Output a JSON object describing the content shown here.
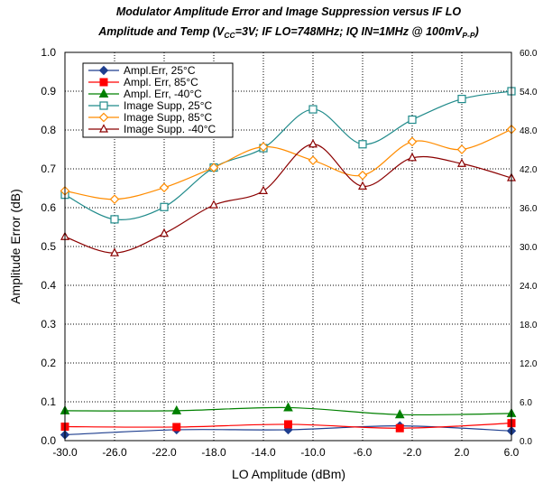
{
  "chart_data": {
    "type": "line",
    "title": {
      "line1": "Modulator Amplitude Error and Image Suppression versus IF LO",
      "line2_parts": [
        {
          "t": "Amplitude and Temp (V",
          "sub": false
        },
        {
          "t": "CC",
          "sub": true
        },
        {
          "t": "=3V; IF LO=748MHz; IQ IN=1MHz @ 100mV",
          "sub": false
        },
        {
          "t": "P-P",
          "sub": true
        },
        {
          "t": ")",
          "sub": false
        }
      ]
    },
    "xlabel": "LO Amplitude (dBm)",
    "ylabel": "Amplitude Error (dB)",
    "x_ticks": [
      "-30.0",
      "-26.0",
      "-22.0",
      "-18.0",
      "-14.0",
      "-10.0",
      "-6.0",
      "-2.0",
      "2.0",
      "6.0"
    ],
    "y_ticks": [
      "0.0",
      "0.1",
      "0.2",
      "0.3",
      "0.4",
      "0.5",
      "0.6",
      "0.7",
      "0.8",
      "0.9",
      "1.0"
    ],
    "y2_ticks": [
      "0.0",
      "6.0",
      "12.0",
      "18.0",
      "24.0",
      "30.0",
      "36.0",
      "42.0",
      "48.0",
      "54.0",
      "60.0"
    ],
    "xlim": [
      -30,
      6
    ],
    "ylim": [
      0,
      1.0
    ],
    "y2lim": [
      0,
      60
    ],
    "grid": true,
    "legend_position": "top-left",
    "series": [
      {
        "name": "Ampl.Err, 25°C",
        "axis": "left",
        "color": "#1f3f8f",
        "marker": "diamond",
        "x": [
          -30,
          -21,
          -12,
          -3,
          6
        ],
        "values": [
          0.015,
          0.028,
          0.028,
          0.038,
          0.025
        ]
      },
      {
        "name": "Ampl. Err, 85°C",
        "axis": "left",
        "color": "#ff0000",
        "marker": "square-filled",
        "x": [
          -30,
          -21,
          -12,
          -3,
          6
        ],
        "values": [
          0.036,
          0.035,
          0.042,
          0.032,
          0.045
        ]
      },
      {
        "name": "Ampl. Err, -40°C",
        "axis": "left",
        "color": "#008000",
        "marker": "triangle-filled",
        "x": [
          -30,
          -21,
          -12,
          -3,
          6
        ],
        "values": [
          0.077,
          0.077,
          0.085,
          0.067,
          0.07
        ]
      },
      {
        "name": "Image Supp, 25°C",
        "axis": "right",
        "color": "#1f8a8a",
        "marker": "square-open",
        "x": [
          -30,
          -26,
          -22,
          -18,
          -14,
          -10,
          -6,
          -2,
          2,
          6
        ],
        "values": [
          38.0,
          34.2,
          36.1,
          42.2,
          45.2,
          51.2,
          45.8,
          49.6,
          52.8,
          54.0
        ]
      },
      {
        "name": "Image Supp, 85°C",
        "axis": "right",
        "color": "#ff8c00",
        "marker": "diamond-open",
        "x": [
          -30,
          -26,
          -22,
          -18,
          -14,
          -10,
          -6,
          -2,
          2,
          6
        ],
        "values": [
          38.6,
          37.3,
          39.1,
          42.2,
          45.4,
          43.3,
          41.0,
          46.2,
          45.0,
          48.1
        ]
      },
      {
        "name": "Image Supp. -40°C",
        "axis": "right",
        "color": "#8b0000",
        "marker": "triangle-open",
        "x": [
          -30,
          -26,
          -22,
          -18,
          -14,
          -10,
          -6,
          -2,
          2,
          6
        ],
        "values": [
          31.5,
          29.0,
          32.0,
          36.4,
          38.6,
          45.8,
          39.3,
          43.7,
          42.8,
          40.6
        ]
      }
    ]
  }
}
